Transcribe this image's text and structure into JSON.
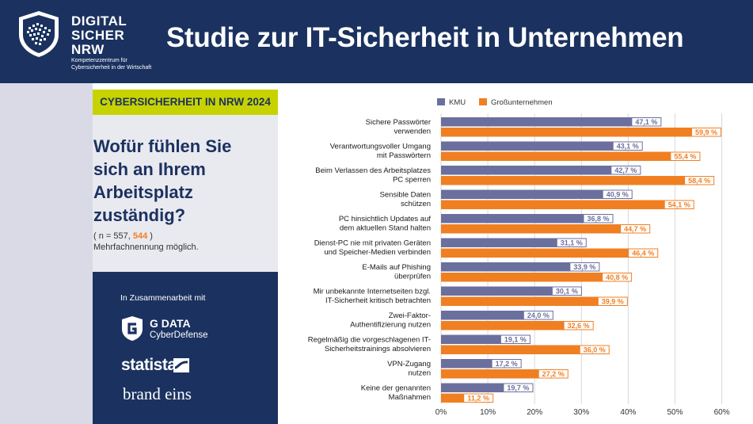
{
  "header": {
    "logo_lines": [
      "DIGITAL",
      "SICHER",
      "NRW"
    ],
    "logo_subtitle": "Kompetenzzentrum für Cybersicherheit in der Wirtschaft",
    "title": "Studie zur IT-Sicherheit  in Unternehmen"
  },
  "tag": "CYBERSICHERHEIT IN NRW 2024",
  "question": "Wofür fühlen Sie sich an Ihrem Arbeitsplatz zuständig?",
  "sample": {
    "prefix": "( n = 557, ",
    "highlight": "544",
    "suffix": " )"
  },
  "multi_note": "Mehrfachnennung möglich.",
  "partners": {
    "intro": "In Zusammenarbeit mit",
    "gdata_name": "G DATA",
    "gdata_sub": "CyberDefense",
    "statista": "statista",
    "brandeins": "brand eins"
  },
  "colors": {
    "kmu": "#6b6f9e",
    "gross": "#f07f22",
    "navy": "#1b3260",
    "lime": "#c7d300"
  },
  "chart_data": {
    "type": "bar",
    "orientation": "horizontal",
    "title": "Wofür fühlen Sie sich an Ihrem Arbeitsplatz zuständig?",
    "legend_position": "top-left",
    "categories": [
      [
        "Sichere Passwörter",
        "verwenden"
      ],
      [
        "Verantwortungsvoller Umgang",
        "mit Passwörtern"
      ],
      [
        "Beim Verlassen des Arbeitsplatzes",
        "PC sperren"
      ],
      [
        "Sensible Daten",
        "schützen"
      ],
      [
        "PC hinsichtlich Updates auf",
        "dem aktuellen Stand halten"
      ],
      [
        "Dienst-PC nie mit privaten Geräten",
        "und Speicher-Medien verbinden"
      ],
      [
        "E-Mails auf Phishing",
        "überprüfen"
      ],
      [
        "Mir unbekannte Internetseiten bzgl.",
        "IT-Sicherheit kritisch betrachten"
      ],
      [
        "Zwei-Faktor-",
        "Authentifizierung nutzen"
      ],
      [
        "Regelmäßig die vorgeschlagenen IT-",
        "Sicherheitstrainings absolvieren"
      ],
      [
        "VPN-Zugang",
        "nutzen"
      ],
      [
        "Keine der genannten",
        "Maßnahmen"
      ]
    ],
    "series": [
      {
        "name": "KMU",
        "values": [
          47.1,
          43.1,
          42.7,
          40.9,
          36.8,
          31.1,
          33.9,
          30.1,
          24.0,
          19.1,
          17.2,
          19.7
        ],
        "labels": [
          "47,1 %",
          "43,1 %",
          "42,7 %",
          "40,9 %",
          "36,8 %",
          "31,1 %",
          "33,9 %",
          "30,1 %",
          "24,0 %",
          "19,1 %",
          "17,2 %",
          "19,7 %"
        ]
      },
      {
        "name": "Großunternehmen",
        "values": [
          59.9,
          55.4,
          58.4,
          54.1,
          44.7,
          46.4,
          40.8,
          39.9,
          32.6,
          36.0,
          27.2,
          11.2
        ],
        "labels": [
          "59,9 %",
          "55,4 %",
          "58,4 %",
          "54,1 %",
          "44,7 %",
          "46,4 %",
          "40,8 %",
          "39,9 %",
          "32,6 %",
          "36,0 %",
          "27,2 %",
          "11,2 %"
        ]
      }
    ],
    "xlim": [
      0,
      60
    ],
    "xticks": [
      "0%",
      "10%",
      "20%",
      "30%",
      "40%",
      "50%",
      "60%"
    ],
    "grid": true
  }
}
